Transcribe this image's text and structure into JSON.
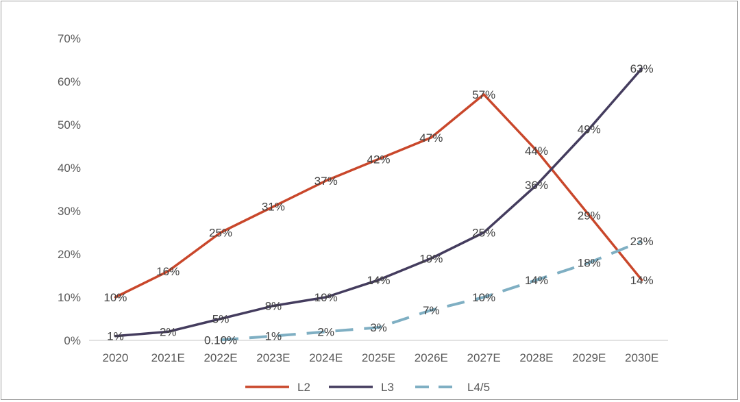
{
  "chart_data": {
    "type": "line",
    "categories": [
      "2020",
      "2021E",
      "2022E",
      "2023E",
      "2024E",
      "2025E",
      "2026E",
      "2027E",
      "2028E",
      "2029E",
      "2030E"
    ],
    "ylim": [
      0,
      70
    ],
    "yticks": [
      "0%",
      "10%",
      "20%",
      "30%",
      "40%",
      "50%",
      "60%",
      "70%"
    ],
    "grid": false,
    "legend_position": "bottom",
    "series": [
      {
        "name": "L2",
        "color": "#c9472b",
        "dash": "solid",
        "values": [
          10,
          16,
          25,
          31,
          37,
          42,
          47,
          57,
          44,
          29,
          14
        ],
        "labels": [
          "10%",
          "16%",
          "25%",
          "31%",
          "37%",
          "42%",
          "47%",
          "57%",
          "44%",
          "29%",
          "14%"
        ]
      },
      {
        "name": "L3",
        "color": "#443c5e",
        "dash": "solid",
        "values": [
          1,
          2,
          5,
          8,
          10,
          14,
          19,
          25,
          36,
          49,
          63
        ],
        "labels": [
          "1%",
          "2%",
          "5%",
          "8%",
          "10%",
          "14%",
          "19%",
          "25%",
          "36%",
          "49%",
          "63%"
        ]
      },
      {
        "name": "L4/5",
        "color": "#7fafc3",
        "dash": "dashed",
        "values": [
          null,
          null,
          0.1,
          1,
          2,
          3,
          7,
          10,
          14,
          18,
          23
        ],
        "labels": [
          null,
          null,
          "0.10%",
          "1%",
          "2%",
          "3%",
          "7%",
          "10%",
          "14%",
          "18%",
          "23%"
        ]
      }
    ]
  }
}
